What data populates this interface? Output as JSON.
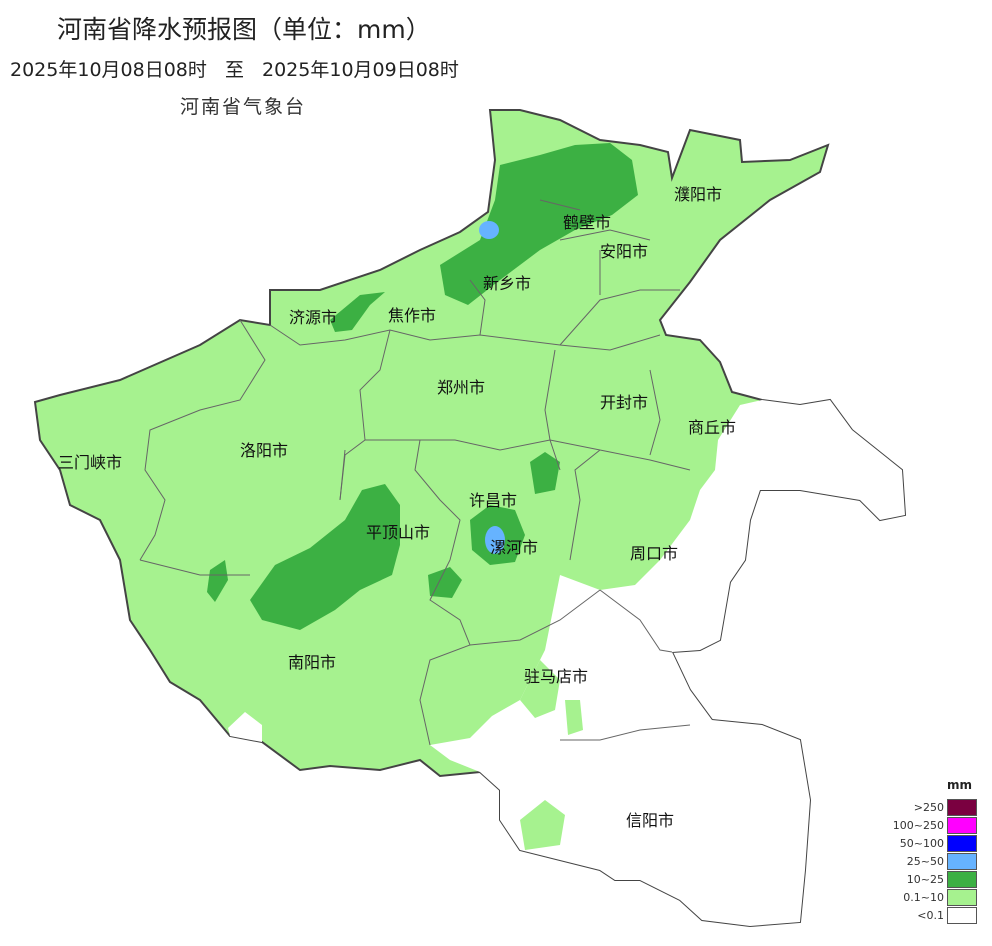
{
  "title": "河南省降水预报图（单位：mm）",
  "period": {
    "start": "2025年10月08日08时",
    "separator": "至",
    "end": "2025年10月09日08时"
  },
  "agency": "河南省气象台",
  "cities": [
    "濮阳市",
    "鹤壁市",
    "安阳市",
    "新乡市",
    "济源市",
    "焦作市",
    "郑州市",
    "开封市",
    "商丘市",
    "三门峡市",
    "洛阳市",
    "许昌市",
    "平顶山市",
    "漯河市",
    "周口市",
    "南阳市",
    "驻马店市",
    "信阳市"
  ],
  "legend": {
    "unit": "mm",
    "items": [
      {
        "label": ">250",
        "color": "#7a0040"
      },
      {
        "label": "100~250",
        "color": "#ff00ff"
      },
      {
        "label": "50~100",
        "color": "#0000ff"
      },
      {
        "label": "25~50",
        "color": "#66b3ff"
      },
      {
        "label": "10~25",
        "color": "#3cb043"
      },
      {
        "label": "0.1~10",
        "color": "#a6f28f"
      },
      {
        "label": "<0.1",
        "color": "#ffffff"
      }
    ]
  }
}
